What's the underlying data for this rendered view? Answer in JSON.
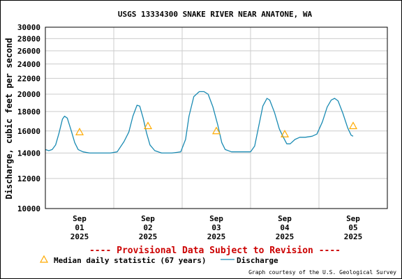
{
  "chart_data": {
    "type": "line",
    "title": "USGS 13334300 SNAKE RIVER NEAR ANATONE, WA",
    "ylabel": "Discharge, cubic feet per second",
    "xlabel": "",
    "y_scale": "log",
    "ylim": [
      10000,
      30000
    ],
    "y_ticks": [
      10000,
      12000,
      14000,
      16000,
      18000,
      20000,
      22000,
      24000,
      26000,
      28000,
      30000
    ],
    "y_tick_labels": [
      "10000",
      "12000",
      "14000",
      "16000",
      "18000",
      "20000",
      "22000",
      "24000",
      "26000",
      "28000",
      "30000"
    ],
    "xlim_days": [
      0,
      5
    ],
    "x_ticks": [
      {
        "day": 0.5,
        "month": "Sep",
        "day_label": "01",
        "year": "2025"
      },
      {
        "day": 1.5,
        "month": "Sep",
        "day_label": "02",
        "year": "2025"
      },
      {
        "day": 2.5,
        "month": "Sep",
        "day_label": "03",
        "year": "2025"
      },
      {
        "day": 3.5,
        "month": "Sep",
        "day_label": "04",
        "year": "2025"
      },
      {
        "day": 4.5,
        "month": "Sep",
        "day_label": "05",
        "year": "2025"
      }
    ],
    "series": [
      {
        "name": "Discharge",
        "color": "#1a8bb3",
        "points": [
          [
            0.0,
            14300
          ],
          [
            0.05,
            14200
          ],
          [
            0.1,
            14300
          ],
          [
            0.15,
            14700
          ],
          [
            0.2,
            15800
          ],
          [
            0.25,
            17200
          ],
          [
            0.28,
            17500
          ],
          [
            0.32,
            17300
          ],
          [
            0.38,
            16000
          ],
          [
            0.43,
            14900
          ],
          [
            0.48,
            14300
          ],
          [
            0.55,
            14100
          ],
          [
            0.65,
            14000
          ],
          [
            0.8,
            14000
          ],
          [
            0.95,
            14000
          ],
          [
            1.05,
            14100
          ],
          [
            1.15,
            15000
          ],
          [
            1.22,
            15900
          ],
          [
            1.28,
            17500
          ],
          [
            1.34,
            18700
          ],
          [
            1.38,
            18600
          ],
          [
            1.43,
            17300
          ],
          [
            1.48,
            15800
          ],
          [
            1.53,
            14700
          ],
          [
            1.6,
            14200
          ],
          [
            1.7,
            14000
          ],
          [
            1.85,
            14000
          ],
          [
            1.98,
            14100
          ],
          [
            2.05,
            15200
          ],
          [
            2.1,
            17500
          ],
          [
            2.17,
            19700
          ],
          [
            2.25,
            20300
          ],
          [
            2.32,
            20300
          ],
          [
            2.38,
            20000
          ],
          [
            2.45,
            18500
          ],
          [
            2.52,
            16600
          ],
          [
            2.58,
            14900
          ],
          [
            2.63,
            14300
          ],
          [
            2.72,
            14100
          ],
          [
            2.85,
            14100
          ],
          [
            3.0,
            14100
          ],
          [
            3.06,
            14600
          ],
          [
            3.12,
            16500
          ],
          [
            3.18,
            18600
          ],
          [
            3.24,
            19500
          ],
          [
            3.28,
            19300
          ],
          [
            3.35,
            17900
          ],
          [
            3.42,
            16200
          ],
          [
            3.48,
            15400
          ],
          [
            3.53,
            14800
          ],
          [
            3.58,
            14800
          ],
          [
            3.65,
            15200
          ],
          [
            3.72,
            15400
          ],
          [
            3.8,
            15400
          ],
          [
            3.9,
            15500
          ],
          [
            3.97,
            15700
          ],
          [
            4.05,
            16900
          ],
          [
            4.12,
            18500
          ],
          [
            4.18,
            19300
          ],
          [
            4.23,
            19500
          ],
          [
            4.28,
            19200
          ],
          [
            4.35,
            17800
          ],
          [
            4.42,
            16300
          ],
          [
            4.47,
            15600
          ],
          [
            4.5,
            15500
          ]
        ]
      }
    ],
    "median_statistic": {
      "name": "Median daily statistic (67 years)",
      "color": "#ffaa00",
      "points": [
        [
          0.5,
          15900
        ],
        [
          1.5,
          16500
        ],
        [
          2.5,
          16000
        ],
        [
          3.5,
          15700
        ],
        [
          4.5,
          16500
        ]
      ]
    },
    "annotation": "---- Provisional Data Subject to Revision ----",
    "annotation_color": "#cc0000",
    "credit": "Graph courtesy of the U.S. Geological Survey",
    "grid": true
  }
}
